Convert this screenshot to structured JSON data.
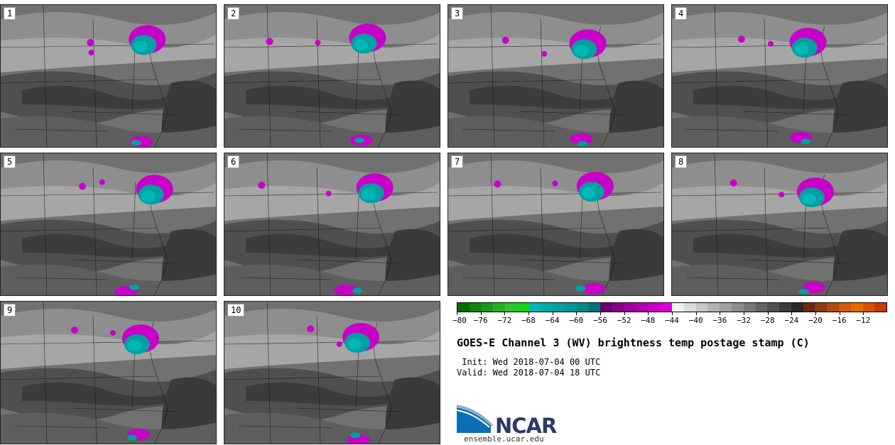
{
  "panels": [
    {
      "label": "1"
    },
    {
      "label": "2"
    },
    {
      "label": "3"
    },
    {
      "label": "4"
    },
    {
      "label": "5"
    },
    {
      "label": "6"
    },
    {
      "label": "7"
    },
    {
      "label": "8"
    },
    {
      "label": "9"
    },
    {
      "label": "10"
    }
  ],
  "colorbar": {
    "ticks": [
      "−80",
      "−76",
      "−72",
      "−68",
      "−64",
      "−60",
      "−56",
      "−52",
      "−48",
      "−44",
      "−40",
      "−36",
      "−32",
      "−28",
      "−24",
      "−20",
      "−16",
      "−12"
    ],
    "colors": [
      "#006e00",
      "#118511",
      "#1b9a1b",
      "#24b024",
      "#2ec42e",
      "#0fd80f",
      "#00b7b7",
      "#00abab",
      "#00a0a0",
      "#009595",
      "#008a8a",
      "#007474",
      "#6a0070",
      "#880088",
      "#a000a0",
      "#b400b4",
      "#c800c8",
      "#dd00dd",
      "#f0f0f0",
      "#dcdcdc",
      "#c8c8c8",
      "#b4b4b4",
      "#a0a0a0",
      "#8c8c8c",
      "#787878",
      "#646464",
      "#505050",
      "#3c3c3c",
      "#282828",
      "#6b2a10",
      "#8b3a14",
      "#b04a14",
      "#d25a0e",
      "#e66a00",
      "#dd5200",
      "#c83a00"
    ]
  },
  "title": "GOES-E Channel 3 (WV) brightness temp postage stamp (C)",
  "init": " Init: Wed 2018-07-04 00 UTC",
  "valid": "Valid: Wed 2018-07-04 18 UTC",
  "logo": {
    "text": "NCAR",
    "website": "ensemble.ucar.edu"
  }
}
